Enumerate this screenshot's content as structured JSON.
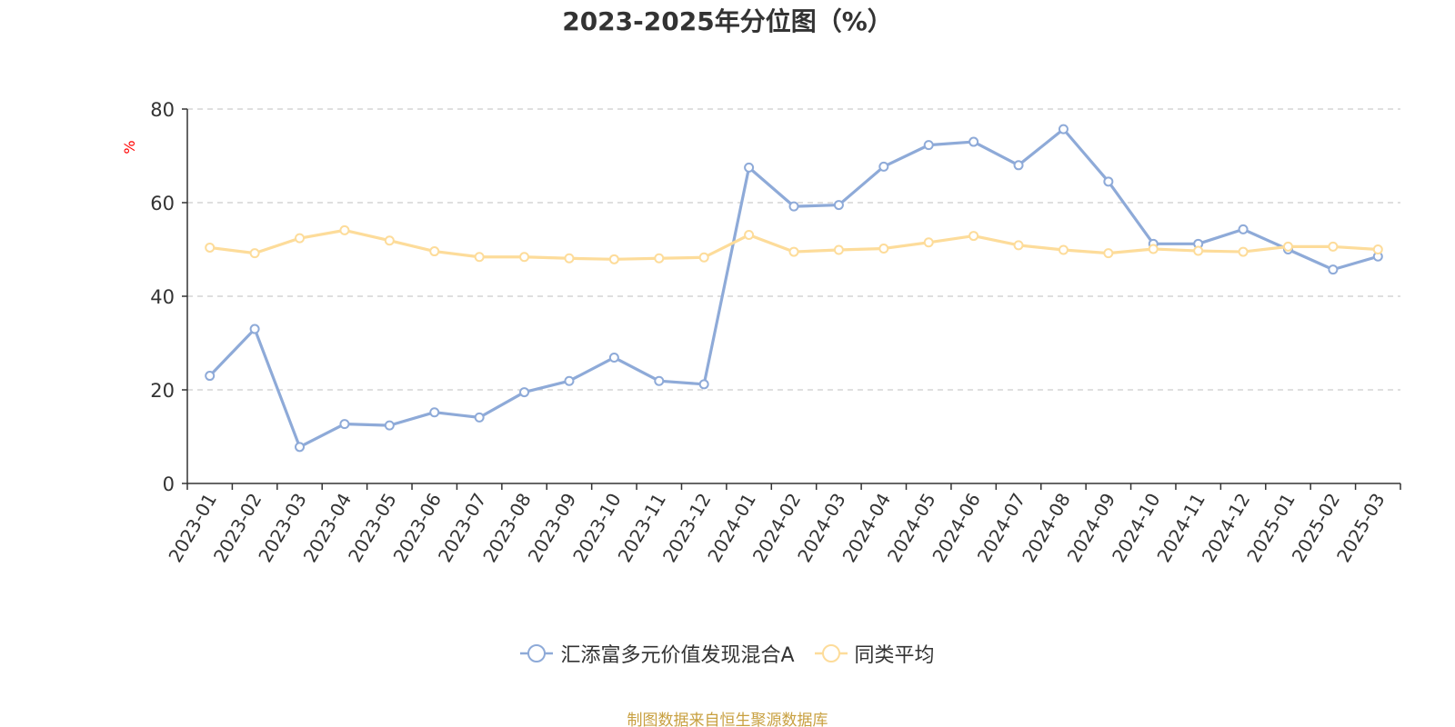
{
  "chart_data": {
    "type": "line",
    "title": "2023-2025年分位图（%）",
    "ylabel": "%",
    "xlabel": "",
    "ylim": [
      0,
      80
    ],
    "yticks": [
      0,
      20,
      40,
      60,
      80
    ],
    "grid": "horizontal dashed",
    "legend_position": "bottom",
    "categories": [
      "2023-01",
      "2023-02",
      "2023-03",
      "2023-04",
      "2023-05",
      "2023-06",
      "2023-07",
      "2023-08",
      "2023-09",
      "2023-10",
      "2023-11",
      "2023-12",
      "2024-01",
      "2024-02",
      "2024-03",
      "2024-04",
      "2024-05",
      "2024-06",
      "2024-07",
      "2024-08",
      "2024-09",
      "2024-10",
      "2024-11",
      "2024-12",
      "2025-01",
      "2025-02",
      "2025-03"
    ],
    "series": [
      {
        "name": "汇添富多元价值发现混合A",
        "color": "#8eaad8",
        "values": [
          23.0,
          33.0,
          7.8,
          12.7,
          12.4,
          15.2,
          14.1,
          19.5,
          21.9,
          26.9,
          21.9,
          21.2,
          67.5,
          59.2,
          59.5,
          67.7,
          72.3,
          73.0,
          68.0,
          75.7,
          64.5,
          51.2,
          51.2,
          54.3,
          50.0,
          45.7,
          48.5
        ]
      },
      {
        "name": "同类平均",
        "color": "#fddc9a",
        "values": [
          50.4,
          49.2,
          52.4,
          54.1,
          51.9,
          49.6,
          48.4,
          48.4,
          48.1,
          47.9,
          48.1,
          48.3,
          53.1,
          49.5,
          49.9,
          50.2,
          51.5,
          52.9,
          50.9,
          49.9,
          49.2,
          50.1,
          49.7,
          49.5,
          50.6,
          50.6,
          50.0
        ]
      }
    ]
  },
  "source_note": "制图数据来自恒生聚源数据库"
}
